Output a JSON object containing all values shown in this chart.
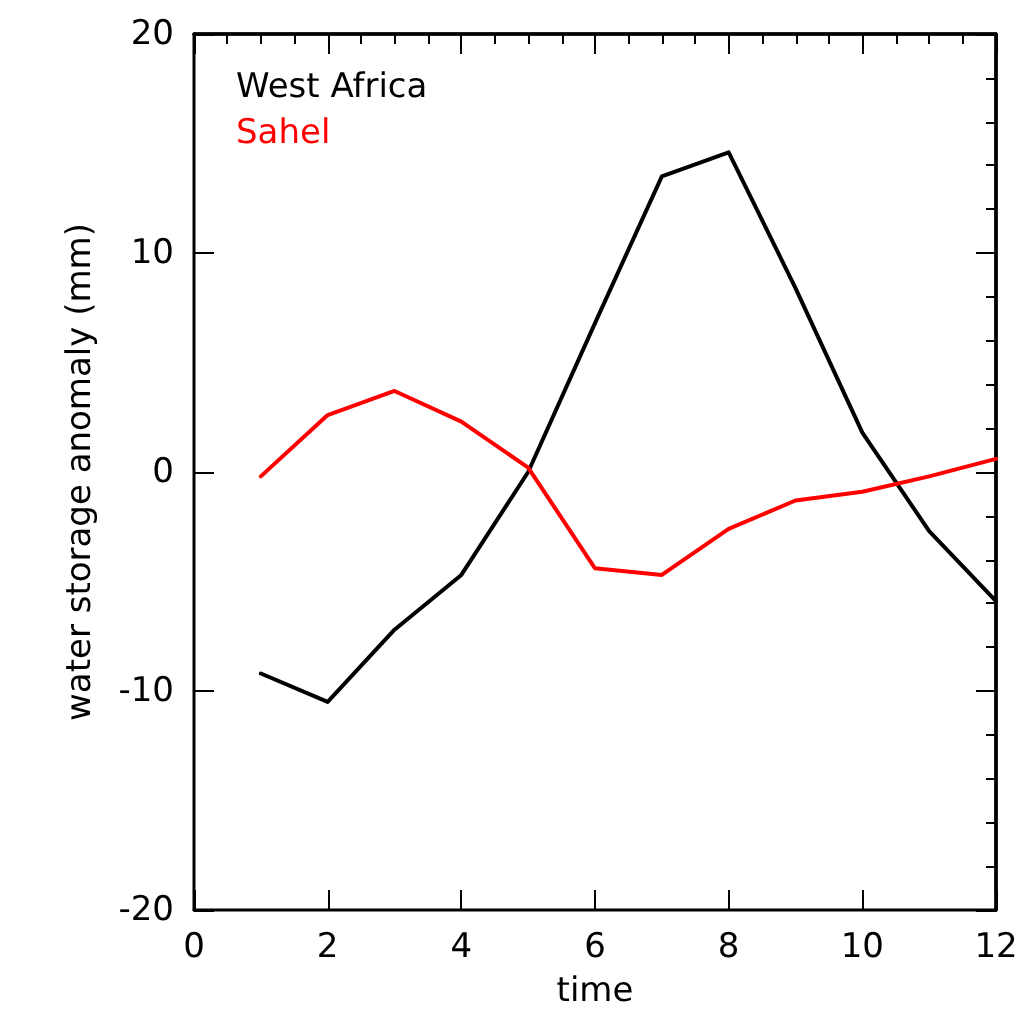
{
  "chart_data": {
    "type": "line",
    "xlabel": "time",
    "ylabel": "water storage anomaly (mm)",
    "x": [
      1,
      2,
      3,
      4,
      5,
      6,
      7,
      8,
      9,
      10,
      11,
      12
    ],
    "xlim": [
      0,
      12
    ],
    "xticks": [
      0,
      2,
      4,
      6,
      8,
      10,
      12
    ],
    "ylim": [
      -20,
      20
    ],
    "yticks": [
      -20,
      -10,
      0,
      10,
      20
    ],
    "grid": false,
    "legend": "top left",
    "marker": "none",
    "line_style": "solid",
    "series": [
      {
        "name": "West Africa",
        "color": "#000000",
        "values": [
          -9.2,
          -10.5,
          -7.2,
          -4.7,
          0,
          6.8,
          13.5,
          14.6,
          8.4,
          1.8,
          -2.7,
          -5.9
        ]
      },
      {
        "name": "Sahel",
        "color": "#ff0000",
        "values": [
          -0.2,
          2.6,
          3.7,
          2.3,
          0.2,
          -4.4,
          -4.7,
          -2.6,
          -1.3,
          -0.9,
          -0.2,
          0.6
        ]
      }
    ]
  }
}
